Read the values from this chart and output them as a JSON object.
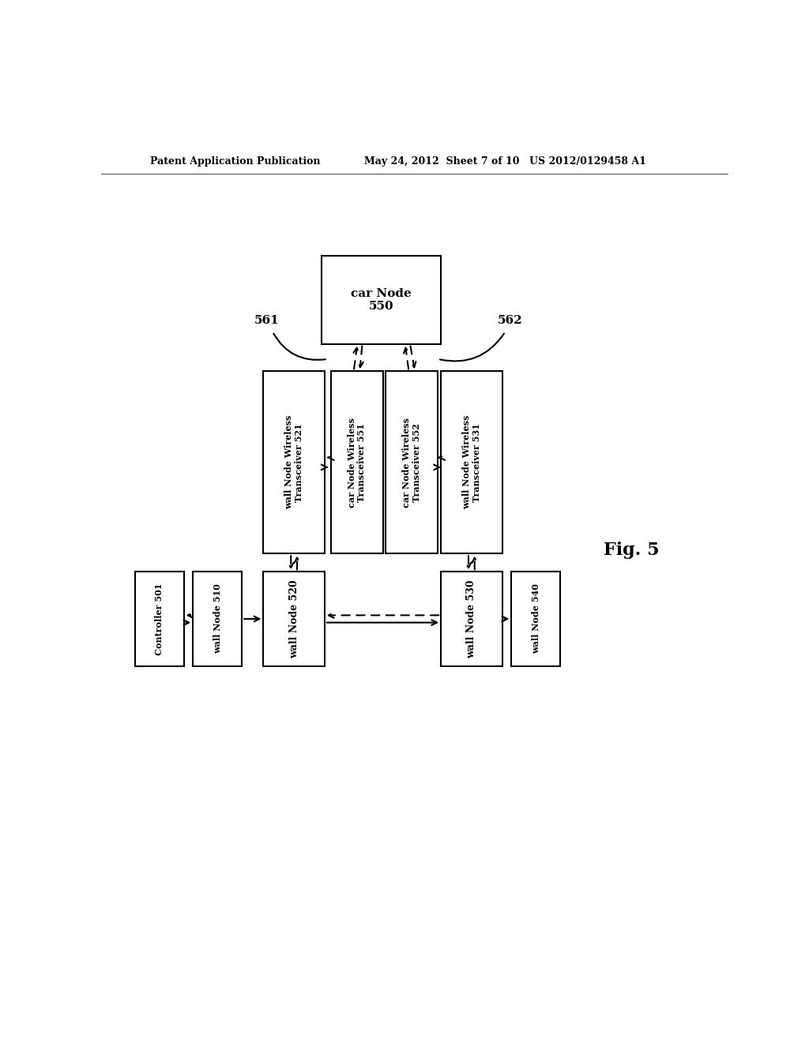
{
  "background_color": "#ffffff",
  "header_left": "Patent Application Publication",
  "header_center": "May 24, 2012  Sheet 7 of 10",
  "header_right": "US 2012/0129458 A1",
  "fig_label": "Fig. 5"
}
